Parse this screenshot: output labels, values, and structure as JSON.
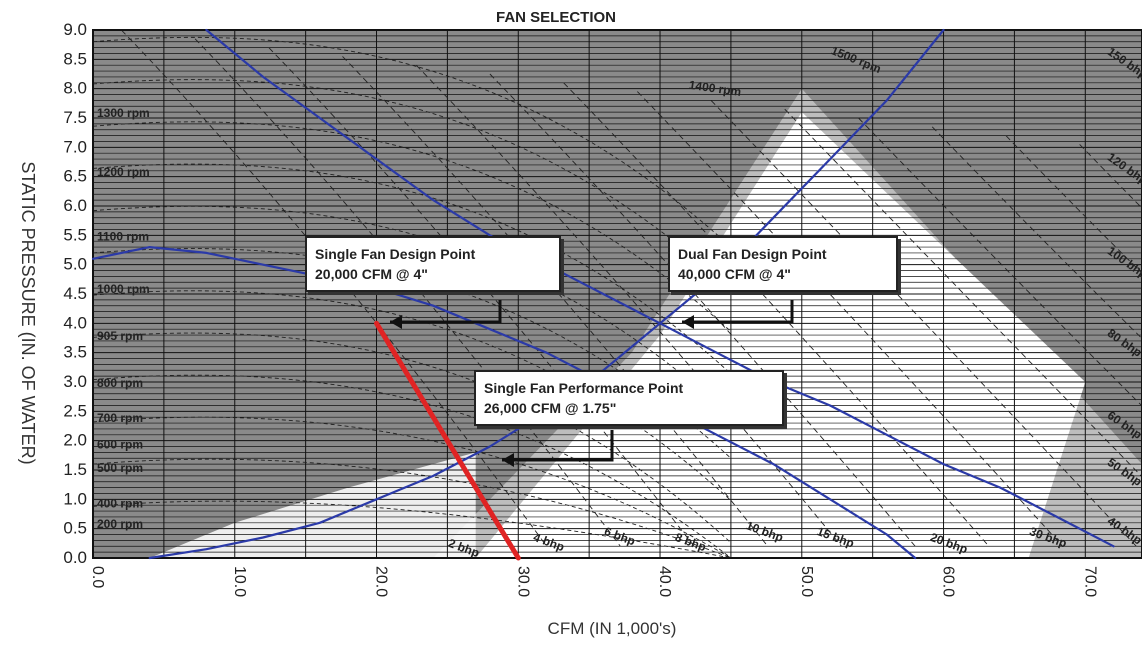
{
  "chart_data": {
    "type": "line",
    "title": "FAN SELECTION",
    "xlabel": "CFM (IN 1,000's)",
    "ylabel": "STATIC PRESSURE (IN. OF WATER)",
    "xlim": [
      0,
      74
    ],
    "ylim": [
      0,
      9
    ],
    "x_ticks": [
      "0.0",
      "10.0",
      "20.0",
      "30.0",
      "40.0",
      "50.0",
      "60.0",
      "70.0"
    ],
    "y_ticks": [
      "0.0",
      "0.5",
      "1.0",
      "1.5",
      "2.0",
      "2.5",
      "3.0",
      "3.5",
      "4.0",
      "4.5",
      "5.0",
      "5.5",
      "6.0",
      "6.5",
      "7.0",
      "7.5",
      "8.0",
      "8.5",
      "9.0"
    ],
    "grid": true,
    "rpm_labels": [
      "1300 rpm",
      "1200 rpm",
      "1100 rpm",
      "1000 rpm",
      "905 rpm",
      "800 rpm",
      "700 rpm",
      "600 rpm",
      "500 rpm",
      "400 rpm",
      "200 rpm",
      "1400 rpm",
      "1500 rpm"
    ],
    "bhp_labels": [
      "2 bhp",
      "4 bhp",
      "6 bhp",
      "8 bhp",
      "10 bhp",
      "15 bhp",
      "20 bhp",
      "30 bhp"
    ],
    "right_labels": [
      "150 bhp",
      "120 bhp",
      "100 bhp",
      "80 bhp",
      "60 bhp",
      "50 bhp",
      "40 bhp"
    ],
    "series": [
      {
        "name": "",
        "color": "#2b3aa8",
        "x": [
          8,
          12,
          16,
          20,
          24,
          28,
          32,
          36,
          40,
          44,
          48,
          52,
          56,
          60,
          64,
          68,
          72
        ],
        "y": [
          9.0,
          8.2,
          7.5,
          6.8,
          6.1,
          5.5,
          5.0,
          4.5,
          4.0,
          3.5,
          3.0,
          2.6,
          2.1,
          1.6,
          1.2,
          0.7,
          0.2
        ]
      },
      {
        "name": "",
        "color": "#2b3aa8",
        "x": [
          0,
          4,
          8,
          12,
          16,
          20,
          24,
          28,
          32,
          36,
          40,
          44,
          48,
          52,
          56,
          58
        ],
        "y": [
          5.1,
          5.3,
          5.2,
          5.0,
          4.8,
          4.6,
          4.3,
          3.9,
          3.5,
          3.0,
          2.6,
          2.1,
          1.6,
          1.0,
          0.4,
          0.0
        ]
      },
      {
        "name": "",
        "color": "#2b3aa8",
        "x": [
          4,
          8,
          12,
          16,
          20,
          24,
          28,
          32,
          36,
          40,
          44,
          48,
          52,
          56,
          60
        ],
        "y": [
          0.0,
          0.15,
          0.35,
          0.6,
          1.0,
          1.4,
          1.9,
          2.5,
          3.2,
          4.0,
          4.8,
          5.8,
          6.8,
          7.8,
          9.0
        ]
      },
      {
        "name": "",
        "color": "#e02424",
        "x": [
          20,
          30
        ],
        "y": [
          4.0,
          0.0
        ]
      }
    ],
    "annotations": [
      {
        "lines": [
          "Single Fan Design Point",
          "20,000 CFM  @  4\""
        ],
        "x": 20,
        "y": 4.0
      },
      {
        "lines": [
          "Dual Fan Design Point",
          "40,000 CFM  @  4\""
        ],
        "x": 40,
        "y": 4.0
      },
      {
        "lines": [
          "Single Fan Performance Point",
          "26,000 CFM  @  1.75\""
        ],
        "x": 26,
        "y": 1.75
      }
    ]
  }
}
